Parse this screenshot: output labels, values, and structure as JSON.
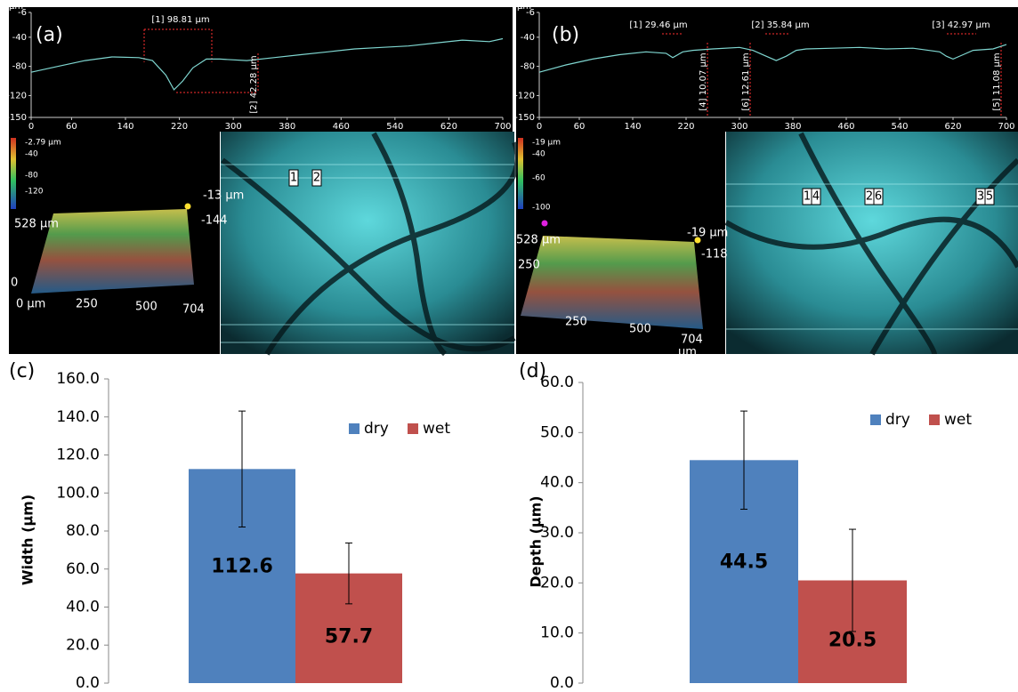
{
  "chart_data": [
    {
      "type": "line",
      "panel": "(a)",
      "ylabel": "µm",
      "color": "#7fd6d0",
      "x": [
        0,
        40,
        80,
        120,
        160,
        180,
        200,
        212,
        225,
        240,
        260,
        280,
        320,
        360,
        400,
        440,
        480,
        520,
        560,
        600,
        640,
        680,
        700
      ],
      "values": [
        -88,
        -80,
        -72,
        -67,
        -68,
        -72,
        -92,
        -112,
        -100,
        -82,
        -70,
        -70,
        -72,
        -68,
        -64,
        -60,
        -56,
        -54,
        -52,
        -48,
        -44,
        -46,
        -42
      ],
      "xlim": [
        0,
        700
      ],
      "xticks": [
        0,
        60,
        140,
        220,
        300,
        380,
        460,
        540,
        620,
        700
      ],
      "ylim": [
        -150,
        -6
      ],
      "yticks": [
        -6,
        -40,
        -80,
        -120,
        -150
      ],
      "annotations": [
        "[1] 98.81 µm",
        "[2] 42.28 µm"
      ]
    },
    {
      "type": "line",
      "panel": "(b)",
      "ylabel": "µm",
      "color": "#7fd6d0",
      "x": [
        0,
        40,
        80,
        120,
        160,
        190,
        200,
        215,
        230,
        260,
        300,
        320,
        340,
        355,
        370,
        385,
        400,
        440,
        480,
        520,
        560,
        600,
        610,
        620,
        635,
        650,
        680,
        700
      ],
      "values": [
        -88,
        -78,
        -70,
        -64,
        -60,
        -62,
        -68,
        -60,
        -58,
        -56,
        -54,
        -58,
        -66,
        -72,
        -66,
        -58,
        -56,
        -55,
        -54,
        -56,
        -55,
        -60,
        -66,
        -70,
        -64,
        -58,
        -56,
        -50
      ],
      "xlim": [
        0,
        700
      ],
      "xticks": [
        0,
        60,
        140,
        220,
        300,
        380,
        460,
        540,
        620,
        700
      ],
      "ylim": [
        -150,
        -6
      ],
      "yticks": [
        -6,
        -40,
        -80,
        -120,
        -150
      ],
      "annotations": [
        "[1] 29.46 µm",
        "[2] 35.84 µm",
        "[3] 42.97 µm",
        "[4] 10.07 µm",
        "[6] 12.61 µm",
        "[5] 11.08 µm"
      ]
    },
    {
      "type": "bar",
      "panel": "(c)",
      "ylabel": "Width (µm)",
      "categories": [
        null
      ],
      "series": [
        {
          "name": "dry",
          "color": "#4f81bd",
          "values": [
            112.6
          ],
          "errors": [
            30.5
          ]
        },
        {
          "name": "wet",
          "color": "#c0504d",
          "values": [
            57.7
          ],
          "errors": [
            16
          ]
        }
      ],
      "ylim": [
        0,
        160
      ],
      "yticks": [
        {
          "value": 0,
          "label": "0.0"
        },
        {
          "value": 20,
          "label": "20.0"
        },
        {
          "value": 40,
          "label": "40.0"
        },
        {
          "value": 60,
          "label": "60.0"
        },
        {
          "value": 80,
          "label": "80.0"
        },
        {
          "value": 100,
          "label": "100.0"
        },
        {
          "value": 120,
          "label": "120.0"
        },
        {
          "value": 140,
          "label": "140.0"
        },
        {
          "value": 160,
          "label": "160.0"
        }
      ]
    },
    {
      "type": "bar",
      "panel": "(d)",
      "ylabel": "Depth (µm)",
      "categories": [
        null
      ],
      "series": [
        {
          "name": "dry",
          "color": "#4f81bd",
          "values": [
            44.5
          ],
          "errors": [
            9.8
          ]
        },
        {
          "name": "wet",
          "color": "#c0504d",
          "values": [
            20.5
          ],
          "errors": [
            10.2
          ]
        }
      ],
      "ylim": [
        0,
        60
      ],
      "yticks": [
        {
          "value": 0,
          "label": "0.0"
        },
        {
          "value": 10,
          "label": "10.0"
        },
        {
          "value": 20,
          "label": "20.0"
        },
        {
          "value": 30,
          "label": "30.0"
        },
        {
          "value": 40,
          "label": "40.0"
        },
        {
          "value": 50,
          "label": "50.0"
        },
        {
          "value": 60,
          "label": "60.0"
        }
      ]
    }
  ],
  "images": [
    {
      "labels": [
        "-2.79 µm",
        "-40",
        "-80",
        "-120",
        "-13 µm",
        "-144",
        "528 µm",
        "0",
        "0 µm",
        "250",
        "500",
        "704"
      ]
    },
    {
      "labels": [
        "1",
        "2"
      ]
    },
    {
      "labels": [
        "-19 µm",
        "-40",
        "-60",
        "-100",
        "-19 µm",
        "-118",
        "528 µm",
        "250",
        "250",
        "500",
        "704",
        "µm"
      ]
    },
    {
      "labels": [
        "1",
        "4",
        "2",
        "6",
        "3",
        "5"
      ]
    }
  ]
}
